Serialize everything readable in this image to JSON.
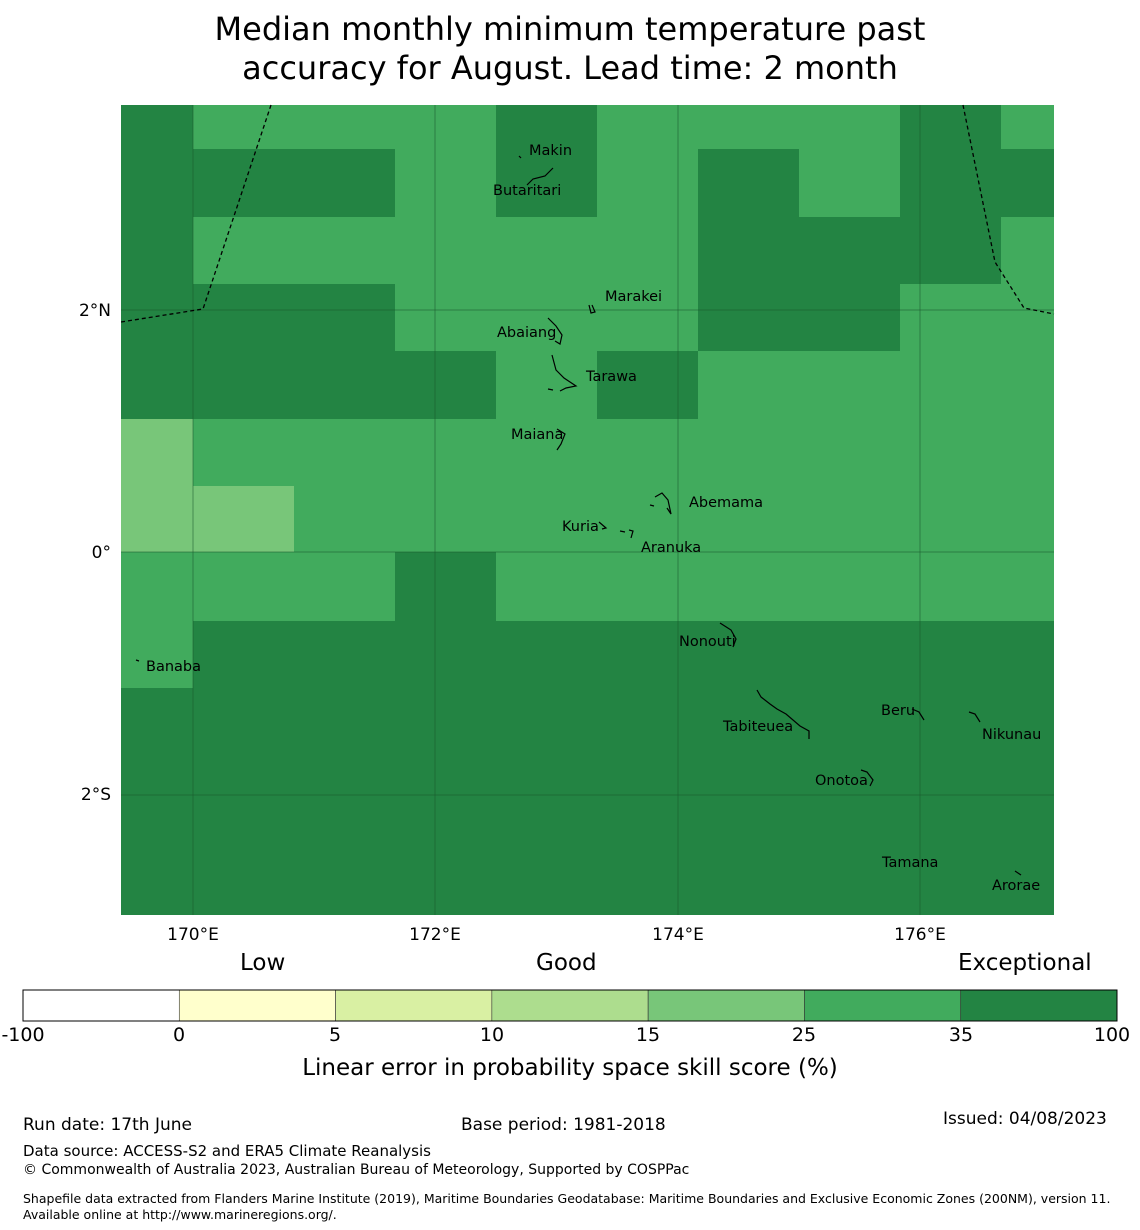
{
  "title_line1": "Median monthly minimum temperature past",
  "title_line2": "accuracy for August. Lead time: 2 month",
  "map": {
    "lon_ticks": [
      "170°E",
      "172°E",
      "174°E",
      "176°E"
    ],
    "lat_ticks": [
      "2°N",
      "0°",
      "2°S"
    ],
    "places": [
      "Makin",
      "Butaritari",
      "Marakei",
      "Abaiang",
      "Tarawa",
      "Maiana",
      "Abemama",
      "Kuria",
      "Aranuka",
      "Nonouti",
      "Banaba",
      "Beru",
      "Tabiteuea",
      "Nikunau",
      "Onotoa",
      "Tamana",
      "Arorae"
    ]
  },
  "colorbar": {
    "headings": [
      "Low",
      "Good",
      "Exceptional"
    ],
    "ticks": [
      "-100",
      "0",
      "5",
      "10",
      "15",
      "25",
      "35",
      "100"
    ],
    "colors": [
      "#ffffff",
      "#ffffcc",
      "#d9f0a3",
      "#addd8e",
      "#78c679",
      "#41ab5d",
      "#238443"
    ],
    "label": "Linear error in probability space skill score (%)"
  },
  "footer": {
    "run_date": "Run date: 17th June",
    "base_period": "Base period: 1981-2018",
    "issued": "Issued: 04/08/2023",
    "data_source": "Data source: ACCESS-S2 and ERA5 Climate Reanalysis",
    "copyright": "© Commonwealth of Australia 2023, Australian Bureau of Meteorology, Supported by COSPPac",
    "shapefile": "Shapefile data extracted from Flanders Marine Institute (2019), Maritime Boundaries Geodatabase: Maritime Boundaries and Exclusive Economic Zones (200NM), version 11. Available online at http://www.marineregions.org/."
  }
}
